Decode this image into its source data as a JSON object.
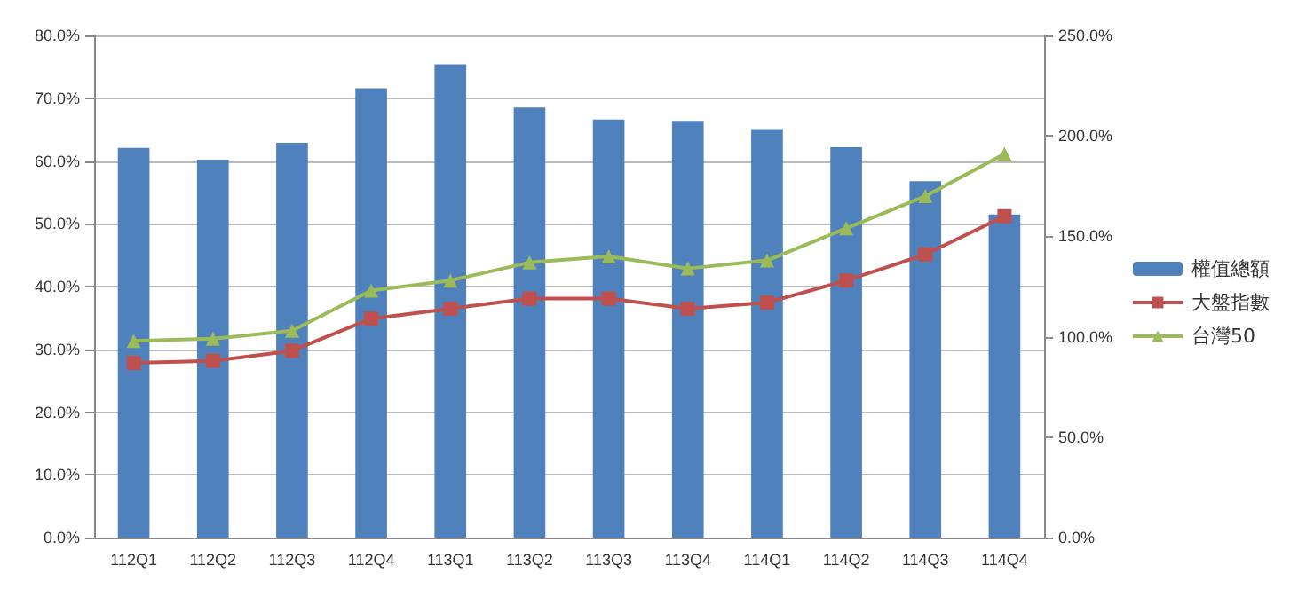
{
  "chart_data": {
    "type": "bar",
    "categories": [
      "112Q1",
      "112Q2",
      "112Q3",
      "112Q4",
      "113Q1",
      "113Q2",
      "113Q3",
      "113Q4",
      "114Q1",
      "114Q2",
      "114Q3",
      "114Q4"
    ],
    "series": [
      {
        "name": "權值總額",
        "color": "#4f81bd",
        "values": [
          62.1,
          60.2,
          62.9,
          71.6,
          75.4,
          68.5,
          66.6,
          66.4,
          65.1,
          62.2,
          56.8,
          51.5
        ]
      },
      {
        "name": "大盤指數",
        "type": "line",
        "axis": "y2",
        "marker": "square",
        "color": "#c0504d",
        "values": [
          87,
          88,
          93,
          109,
          114,
          119,
          119,
          114,
          117,
          128,
          141,
          160
        ]
      },
      {
        "name": "台灣50",
        "type": "line",
        "axis": "y2",
        "marker": "triangle",
        "color": "#9bbb59",
        "values": [
          98,
          99,
          103,
          123,
          128,
          137,
          140,
          134,
          138,
          154,
          170,
          191
        ]
      }
    ],
    "ylim": [
      0,
      80
    ],
    "yticks": [
      {
        "value": 0,
        "label": "0.0%"
      },
      {
        "value": 10,
        "label": "10.0%"
      },
      {
        "value": 20,
        "label": "20.0%"
      },
      {
        "value": 30,
        "label": "30.0%"
      },
      {
        "value": 40,
        "label": "40.0%"
      },
      {
        "value": 50,
        "label": "50.0%"
      },
      {
        "value": 60,
        "label": "60.0%"
      },
      {
        "value": 70,
        "label": "70.0%"
      },
      {
        "value": 80,
        "label": "80.0%"
      }
    ],
    "y2lim": [
      0,
      250
    ],
    "y2ticks": [
      {
        "value": 0,
        "label": "0.0%"
      },
      {
        "value": 50,
        "label": "50.0%"
      },
      {
        "value": 100,
        "label": "100.0%"
      },
      {
        "value": 150,
        "label": "150.0%"
      },
      {
        "value": 200,
        "label": "200.0%"
      },
      {
        "value": 250,
        "label": "250.0%"
      }
    ],
    "grid": "y",
    "legend": "right"
  }
}
